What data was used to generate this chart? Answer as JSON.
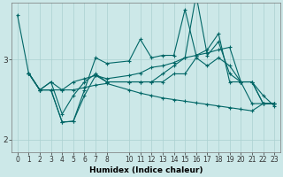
{
  "xlabel": "Humidex (Indice chaleur)",
  "ylabel": "",
  "bg_color": "#cce8e8",
  "line_color": "#006666",
  "grid_color": "#aad0d0",
  "ylim": [
    1.85,
    3.7
  ],
  "xlim": [
    -0.5,
    23.5
  ],
  "yticks": [
    2,
    3
  ],
  "lines": [
    {
      "x": [
        0,
        1,
        2,
        3,
        4,
        5,
        6,
        7,
        8,
        10,
        11,
        12,
        13,
        14,
        15,
        16,
        17,
        18,
        19,
        20,
        21,
        22,
        23
      ],
      "y": [
        3.55,
        2.83,
        2.62,
        2.62,
        2.22,
        2.23,
        2.62,
        3.02,
        2.95,
        2.98,
        3.25,
        3.02,
        3.05,
        3.05,
        3.62,
        3.05,
        3.12,
        3.32,
        2.72,
        2.72,
        2.45,
        2.45,
        2.45
      ]
    },
    {
      "x": [
        1,
        2,
        3,
        4,
        5,
        6,
        7,
        8,
        10,
        11,
        12,
        13,
        14,
        15,
        16,
        17,
        18,
        19,
        20,
        21,
        22,
        23
      ],
      "y": [
        2.83,
        2.62,
        2.72,
        2.62,
        2.72,
        2.76,
        2.8,
        2.76,
        2.8,
        2.83,
        2.9,
        2.92,
        2.96,
        3.02,
        3.05,
        3.08,
        3.12,
        3.15,
        2.72,
        2.72,
        2.45,
        2.45
      ]
    },
    {
      "x": [
        1,
        2,
        3,
        4,
        5,
        6,
        7,
        8,
        10,
        11,
        12,
        13,
        14,
        15,
        16,
        17,
        18,
        19,
        20,
        21,
        22,
        23
      ],
      "y": [
        2.83,
        2.62,
        2.62,
        2.62,
        2.62,
        2.65,
        2.68,
        2.7,
        2.62,
        2.58,
        2.55,
        2.52,
        2.5,
        2.48,
        2.46,
        2.44,
        2.42,
        2.4,
        2.38,
        2.36,
        2.45,
        2.45
      ]
    },
    {
      "x": [
        1,
        2,
        3,
        4,
        5,
        6,
        7,
        8,
        10,
        11,
        12,
        13,
        14,
        15,
        16,
        17,
        18,
        19,
        20,
        21,
        22,
        23
      ],
      "y": [
        2.83,
        2.62,
        2.62,
        2.22,
        2.23,
        2.55,
        2.8,
        2.72,
        2.72,
        2.72,
        2.72,
        2.82,
        2.92,
        3.02,
        3.8,
        3.05,
        3.22,
        2.82,
        2.72,
        2.72,
        2.45,
        2.45
      ]
    },
    {
      "x": [
        1,
        2,
        3,
        4,
        5,
        6,
        7,
        8,
        10,
        11,
        12,
        13,
        14,
        15,
        16,
        17,
        18,
        19,
        20,
        21,
        22,
        23
      ],
      "y": [
        2.83,
        2.62,
        2.72,
        2.32,
        2.55,
        2.72,
        2.82,
        2.72,
        2.72,
        2.72,
        2.72,
        2.72,
        2.82,
        2.82,
        3.02,
        2.92,
        3.02,
        2.92,
        2.72,
        2.72,
        2.55,
        2.42
      ]
    }
  ],
  "marker": "+",
  "markersize": 3.5,
  "linewidth": 0.8,
  "xticks": [
    0,
    1,
    2,
    3,
    4,
    5,
    6,
    7,
    8,
    10,
    11,
    12,
    13,
    14,
    15,
    16,
    17,
    18,
    19,
    20,
    21,
    22,
    23
  ],
  "xtick_fontsize": 5.5,
  "ytick_fontsize": 6.5,
  "xlabel_fontsize": 6.5
}
